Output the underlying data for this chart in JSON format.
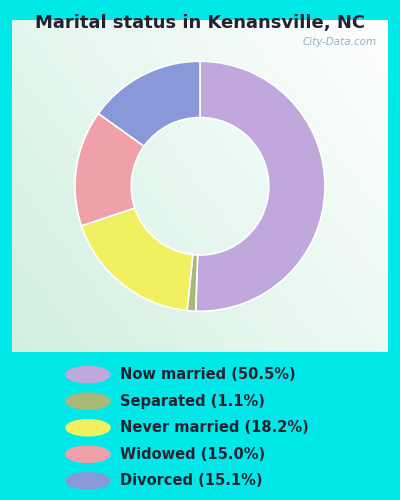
{
  "title": "Marital status in Kenansville, NC",
  "slices": [
    {
      "label": "Now married (50.5%)",
      "value": 50.5,
      "color": "#C0A8DC"
    },
    {
      "label": "Separated (1.1%)",
      "value": 1.1,
      "color": "#A8B878"
    },
    {
      "label": "Never married (18.2%)",
      "value": 18.2,
      "color": "#F0F060"
    },
    {
      "label": "Widowed (15.0%)",
      "value": 15.0,
      "color": "#F0A0A8"
    },
    {
      "label": "Divorced (15.1%)",
      "value": 15.1,
      "color": "#8898D8"
    }
  ],
  "bg_cyan": "#00E8E8",
  "title_fontsize": 13,
  "legend_fontsize": 10.5,
  "watermark": "City-Data.com",
  "donut_width": 0.45,
  "title_color": "#222233",
  "legend_text_color": "#222233"
}
